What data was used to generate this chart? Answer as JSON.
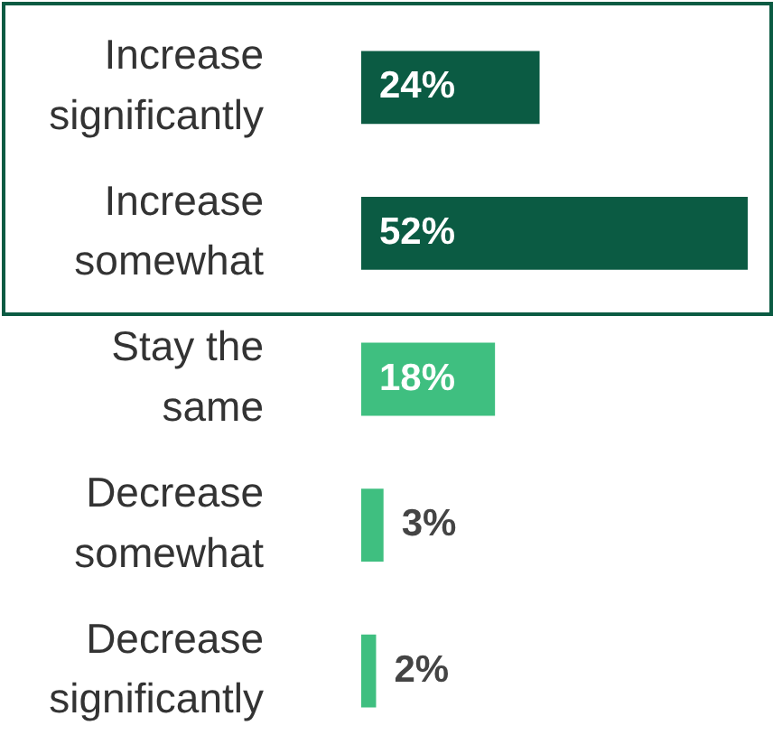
{
  "chart_data": {
    "type": "bar",
    "orientation": "horizontal",
    "categories": [
      "Increase significantly",
      "Increase somewhat",
      "Stay the same",
      "Decrease somewhat",
      "Decrease significantly"
    ],
    "values": [
      24,
      52,
      18,
      3,
      2
    ],
    "colors": [
      "#0b5b43",
      "#0b5b43",
      "#3fbf80",
      "#3fbf80",
      "#3fbf80"
    ],
    "value_labels": [
      "24%",
      "52%",
      "18%",
      "3%",
      "2%"
    ],
    "tick_labels": "y",
    "legend": false
  }
}
